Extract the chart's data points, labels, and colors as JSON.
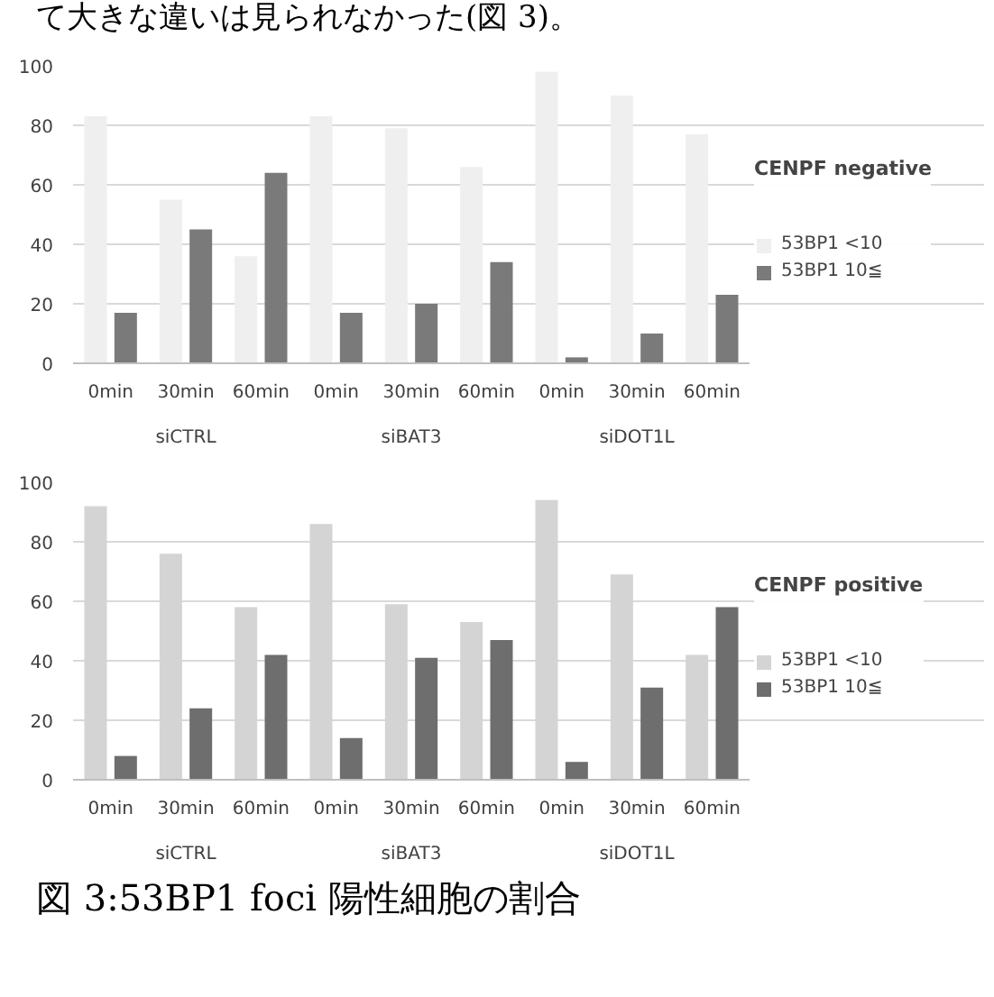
{
  "chart_data": [
    {
      "type": "other",
      "annotations": [
        "て大きな違いは見られなかった(図 3)。"
      ]
    },
    {
      "type": "bar",
      "legend_title": "CENPF negative",
      "categories": [
        "0min",
        "30min",
        "60min",
        "0min",
        "30min",
        "60min",
        "0min",
        "30min",
        "60min"
      ],
      "annotations": [
        "siCTRL",
        "siBAT3",
        "siDOT1L"
      ],
      "series": [
        {
          "name": "53BP1 <10",
          "color": "#efefef",
          "values": [
            83,
            55,
            36,
            83,
            79,
            66,
            98,
            90,
            77
          ]
        },
        {
          "name": "53BP1 10≦",
          "color": "#7a7a7a",
          "values": [
            17,
            45,
            64,
            17,
            20,
            34,
            2,
            10,
            23
          ]
        }
      ],
      "ylim": [
        0,
        100
      ],
      "yticks": [
        0,
        20,
        40,
        60,
        80,
        100
      ],
      "grid": "y",
      "legend": "right"
    },
    {
      "type": "bar",
      "legend_title": "CENPF positive",
      "categories": [
        "0min",
        "30min",
        "60min",
        "0min",
        "30min",
        "60min",
        "0min",
        "30min",
        "60min"
      ],
      "annotations": [
        "siCTRL",
        "siBAT3",
        "siDOT1L"
      ],
      "series": [
        {
          "name": "53BP1 <10",
          "color": "#d4d4d4",
          "values": [
            92,
            76,
            58,
            86,
            59,
            53,
            94,
            69,
            42
          ]
        },
        {
          "name": "53BP1 10≦",
          "color": "#6e6e6e",
          "values": [
            8,
            24,
            42,
            14,
            41,
            47,
            6,
            31,
            58
          ]
        }
      ],
      "ylim": [
        0,
        100
      ],
      "yticks": [
        0,
        20,
        40,
        60,
        80,
        100
      ],
      "grid": "y",
      "legend": "right"
    },
    {
      "type": "other",
      "annotations": [
        "図 3:53BP1 foci 陽性細胞の割合"
      ]
    }
  ]
}
